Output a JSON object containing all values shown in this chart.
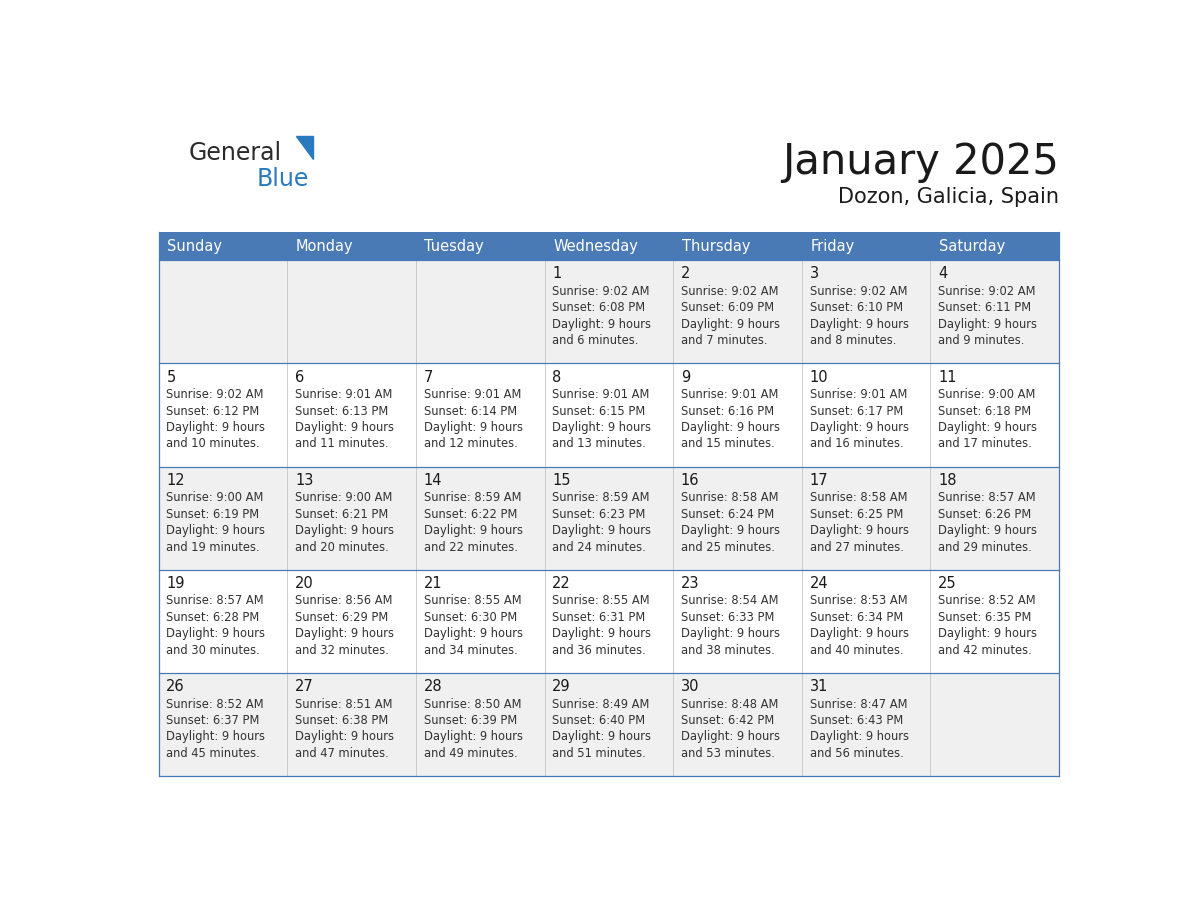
{
  "title": "January 2025",
  "subtitle": "Dozon, Galicia, Spain",
  "days_of_week": [
    "Sunday",
    "Monday",
    "Tuesday",
    "Wednesday",
    "Thursday",
    "Friday",
    "Saturday"
  ],
  "header_bg": "#4a7ab5",
  "header_text_color": "#FFFFFF",
  "row_bg_odd": "#f0f0f0",
  "row_bg_even": "#ffffff",
  "border_color": "#4a7ab5",
  "title_color": "#1a1a1a",
  "subtitle_color": "#1a1a1a",
  "day_num_color": "#1a1a1a",
  "cell_text_color": "#333333",
  "calendar_data": [
    [
      {
        "day": null,
        "sunrise": null,
        "sunset": null,
        "daylight": null
      },
      {
        "day": null,
        "sunrise": null,
        "sunset": null,
        "daylight": null
      },
      {
        "day": null,
        "sunrise": null,
        "sunset": null,
        "daylight": null
      },
      {
        "day": 1,
        "sunrise": "9:02 AM",
        "sunset": "6:08 PM",
        "daylight": "9 hours and 6 minutes."
      },
      {
        "day": 2,
        "sunrise": "9:02 AM",
        "sunset": "6:09 PM",
        "daylight": "9 hours and 7 minutes."
      },
      {
        "day": 3,
        "sunrise": "9:02 AM",
        "sunset": "6:10 PM",
        "daylight": "9 hours and 8 minutes."
      },
      {
        "day": 4,
        "sunrise": "9:02 AM",
        "sunset": "6:11 PM",
        "daylight": "9 hours and 9 minutes."
      }
    ],
    [
      {
        "day": 5,
        "sunrise": "9:02 AM",
        "sunset": "6:12 PM",
        "daylight": "9 hours and 10 minutes."
      },
      {
        "day": 6,
        "sunrise": "9:01 AM",
        "sunset": "6:13 PM",
        "daylight": "9 hours and 11 minutes."
      },
      {
        "day": 7,
        "sunrise": "9:01 AM",
        "sunset": "6:14 PM",
        "daylight": "9 hours and 12 minutes."
      },
      {
        "day": 8,
        "sunrise": "9:01 AM",
        "sunset": "6:15 PM",
        "daylight": "9 hours and 13 minutes."
      },
      {
        "day": 9,
        "sunrise": "9:01 AM",
        "sunset": "6:16 PM",
        "daylight": "9 hours and 15 minutes."
      },
      {
        "day": 10,
        "sunrise": "9:01 AM",
        "sunset": "6:17 PM",
        "daylight": "9 hours and 16 minutes."
      },
      {
        "day": 11,
        "sunrise": "9:00 AM",
        "sunset": "6:18 PM",
        "daylight": "9 hours and 17 minutes."
      }
    ],
    [
      {
        "day": 12,
        "sunrise": "9:00 AM",
        "sunset": "6:19 PM",
        "daylight": "9 hours and 19 minutes."
      },
      {
        "day": 13,
        "sunrise": "9:00 AM",
        "sunset": "6:21 PM",
        "daylight": "9 hours and 20 minutes."
      },
      {
        "day": 14,
        "sunrise": "8:59 AM",
        "sunset": "6:22 PM",
        "daylight": "9 hours and 22 minutes."
      },
      {
        "day": 15,
        "sunrise": "8:59 AM",
        "sunset": "6:23 PM",
        "daylight": "9 hours and 24 minutes."
      },
      {
        "day": 16,
        "sunrise": "8:58 AM",
        "sunset": "6:24 PM",
        "daylight": "9 hours and 25 minutes."
      },
      {
        "day": 17,
        "sunrise": "8:58 AM",
        "sunset": "6:25 PM",
        "daylight": "9 hours and 27 minutes."
      },
      {
        "day": 18,
        "sunrise": "8:57 AM",
        "sunset": "6:26 PM",
        "daylight": "9 hours and 29 minutes."
      }
    ],
    [
      {
        "day": 19,
        "sunrise": "8:57 AM",
        "sunset": "6:28 PM",
        "daylight": "9 hours and 30 minutes."
      },
      {
        "day": 20,
        "sunrise": "8:56 AM",
        "sunset": "6:29 PM",
        "daylight": "9 hours and 32 minutes."
      },
      {
        "day": 21,
        "sunrise": "8:55 AM",
        "sunset": "6:30 PM",
        "daylight": "9 hours and 34 minutes."
      },
      {
        "day": 22,
        "sunrise": "8:55 AM",
        "sunset": "6:31 PM",
        "daylight": "9 hours and 36 minutes."
      },
      {
        "day": 23,
        "sunrise": "8:54 AM",
        "sunset": "6:33 PM",
        "daylight": "9 hours and 38 minutes."
      },
      {
        "day": 24,
        "sunrise": "8:53 AM",
        "sunset": "6:34 PM",
        "daylight": "9 hours and 40 minutes."
      },
      {
        "day": 25,
        "sunrise": "8:52 AM",
        "sunset": "6:35 PM",
        "daylight": "9 hours and 42 minutes."
      }
    ],
    [
      {
        "day": 26,
        "sunrise": "8:52 AM",
        "sunset": "6:37 PM",
        "daylight": "9 hours and 45 minutes."
      },
      {
        "day": 27,
        "sunrise": "8:51 AM",
        "sunset": "6:38 PM",
        "daylight": "9 hours and 47 minutes."
      },
      {
        "day": 28,
        "sunrise": "8:50 AM",
        "sunset": "6:39 PM",
        "daylight": "9 hours and 49 minutes."
      },
      {
        "day": 29,
        "sunrise": "8:49 AM",
        "sunset": "6:40 PM",
        "daylight": "9 hours and 51 minutes."
      },
      {
        "day": 30,
        "sunrise": "8:48 AM",
        "sunset": "6:42 PM",
        "daylight": "9 hours and 53 minutes."
      },
      {
        "day": 31,
        "sunrise": "8:47 AM",
        "sunset": "6:43 PM",
        "daylight": "9 hours and 56 minutes."
      },
      {
        "day": null,
        "sunrise": null,
        "sunset": null,
        "daylight": null
      }
    ]
  ],
  "logo_general_color": "#2b2b2b",
  "logo_blue_color": "#2a7abf",
  "logo_triangle_color": "#2a7abf"
}
